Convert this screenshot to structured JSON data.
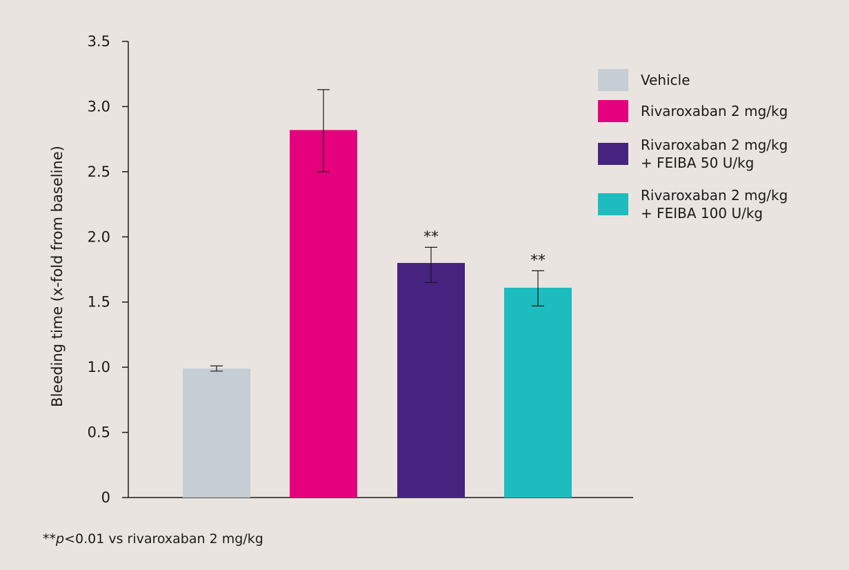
{
  "chart_data": {
    "type": "bar",
    "ylabel": "Bleeding time (x-fold from baseline)",
    "xlabel": "",
    "ylim": [
      0,
      3.5
    ],
    "yticks": [
      {
        "value": 0,
        "label": "0"
      },
      {
        "value": 0.5,
        "label": "0.5"
      },
      {
        "value": 1.0,
        "label": "1.0"
      },
      {
        "value": 1.5,
        "label": "1.5"
      },
      {
        "value": 2.0,
        "label": "2.0"
      },
      {
        "value": 2.5,
        "label": "2.5"
      },
      {
        "value": 3.0,
        "label": "3.0"
      },
      {
        "value": 3.5,
        "label": "3.5"
      }
    ],
    "grid": false,
    "legend_position": "top-right",
    "bars": [
      {
        "legend_lines": [
          "Vehicle"
        ],
        "value": 0.99,
        "err_low": 0.97,
        "err_high": 1.01,
        "color": "#c6ced5",
        "annotation": ""
      },
      {
        "legend_lines": [
          "Rivaroxaban 2 mg/kg"
        ],
        "value": 2.82,
        "err_low": 2.5,
        "err_high": 3.13,
        "color": "#e5007e",
        "annotation": ""
      },
      {
        "legend_lines": [
          "Rivaroxaban 2 mg/kg",
          "+ FEIBA 50 U/kg"
        ],
        "value": 1.8,
        "err_low": 1.65,
        "err_high": 1.92,
        "color": "#46237f",
        "annotation": "**"
      },
      {
        "legend_lines": [
          "Rivaroxaban 2 mg/kg",
          "+ FEIBA 100 U/kg"
        ],
        "value": 1.61,
        "err_low": 1.47,
        "err_high": 1.74,
        "color": "#1dbcbf",
        "annotation": "**"
      }
    ]
  },
  "footnote": {
    "stars": "**",
    "p": "p",
    "rest": "<0.01 vs rivaroxaban 2 mg/kg"
  }
}
